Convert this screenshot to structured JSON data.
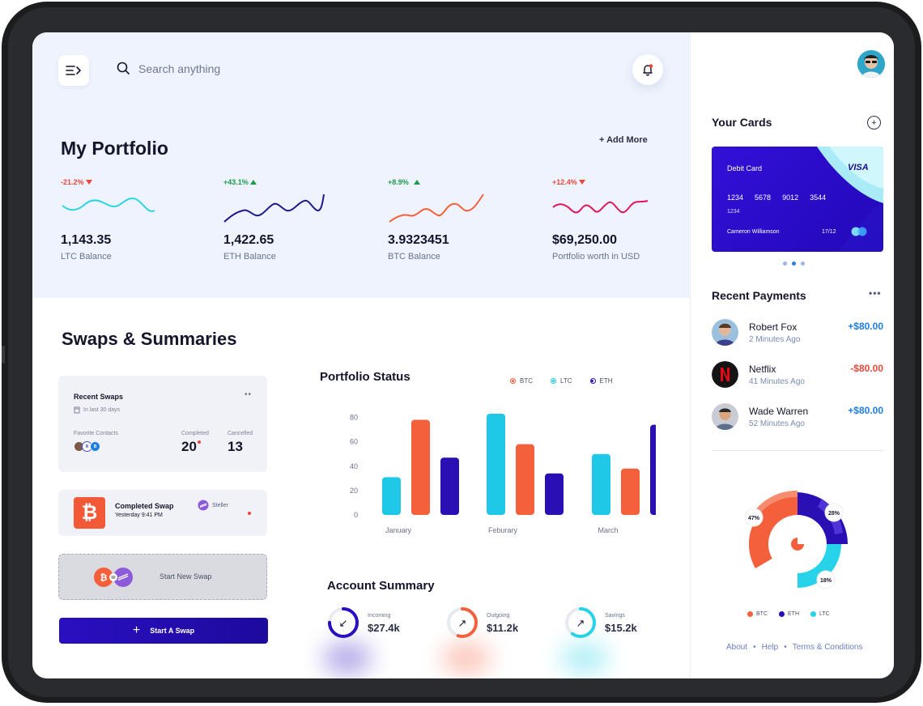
{
  "header": {
    "search_placeholder": "Search anything"
  },
  "portfolio": {
    "title": "My Portfolio",
    "add_more": "+ Add More",
    "cards": [
      {
        "change": "-21.2%",
        "direction": "down",
        "value": "1,143.35",
        "label": "LTC Balance",
        "color": "#29d6e6"
      },
      {
        "change": "+43.1%",
        "direction": "up",
        "value": "1,422.65",
        "label": "ETH Balance",
        "color": "#1e1a8a"
      },
      {
        "change": "+8.9%",
        "direction": "up",
        "value": "3.9323451",
        "label": "BTC Balance",
        "color": "#f5603c"
      },
      {
        "change": "+12.4%",
        "direction": "down",
        "value": "$69,250.00",
        "label": "Portfolio worth in USD",
        "color": "#e01858"
      }
    ]
  },
  "swaps": {
    "title": "Swaps & Summaries",
    "recent": {
      "title": "Recent Swaps",
      "subtitle": "In last 30 days",
      "favorite_label": "Favorite Contacts",
      "completed_label": "Completed",
      "completed_value": "20",
      "cancelled_label": "Cancelled",
      "cancelled_value": "13"
    },
    "completed_swap": {
      "title": "Completed Swap",
      "time": "Yesterday 9:41 PM",
      "coin": "Steller"
    },
    "start_new": "Start New Swap",
    "start_button": "Start A Swap"
  },
  "portfolio_status": {
    "title": "Portfolio Status",
    "legend": [
      "BTC",
      "LTC",
      "ETH"
    ]
  },
  "chart_data": {
    "type": "bar",
    "categories": [
      "January",
      "Feburary",
      "March"
    ],
    "yticks": [
      "80",
      "60",
      "40",
      "20",
      "0"
    ],
    "ylim": [
      0,
      85
    ],
    "series": [
      {
        "name": "LTC",
        "color": "#1ec8e6",
        "values": [
          31,
          83,
          50
        ]
      },
      {
        "name": "BTC",
        "color": "#f5603c",
        "values": [
          78,
          58,
          38
        ]
      },
      {
        "name": "ETH",
        "color": "#2a0fb5",
        "values": [
          47,
          34,
          74
        ]
      }
    ]
  },
  "account_summary": {
    "title": "Account Summary",
    "items": [
      {
        "label": "Incoming",
        "value": "$27.4k",
        "color": "#2a0fc0",
        "arrow": "↙",
        "progress": 0.75
      },
      {
        "label": "Outgoing",
        "value": "$11.2k",
        "color": "#f5603c",
        "arrow": "↗",
        "progress": 0.55
      },
      {
        "label": "Savings",
        "value": "$15.2k",
        "color": "#26d3e8",
        "arrow": "↗",
        "progress": 0.6
      }
    ]
  },
  "cards": {
    "title": "Your Cards",
    "card": {
      "type": "Debit Card",
      "brand": "VISA",
      "number": [
        "1234",
        "5678",
        "9012",
        "3544"
      ],
      "number_short": "1234",
      "holder": "Cameron Williamson",
      "expiry": "17/12"
    }
  },
  "payments": {
    "title": "Recent Payments",
    "items": [
      {
        "name": "Robert Fox",
        "time": "2 Minutes Ago",
        "amount": "+$80.00",
        "sign": "plus"
      },
      {
        "name": "Netflix",
        "time": "41 Minutes Ago",
        "amount": "-$80.00",
        "sign": "minus"
      },
      {
        "name": "Wade Warren",
        "time": "52 Minutes Ago",
        "amount": "+$80.00",
        "sign": "plus"
      }
    ]
  },
  "donut": {
    "labels": [
      "47%",
      "28%",
      "18%"
    ],
    "legend": [
      "BTC",
      "ETH",
      "LTC"
    ],
    "colors": [
      "#f5603c",
      "#2a0fb5",
      "#26d3e8"
    ]
  },
  "footer": {
    "links": [
      "About",
      "Help",
      "Terms & Conditions"
    ]
  }
}
